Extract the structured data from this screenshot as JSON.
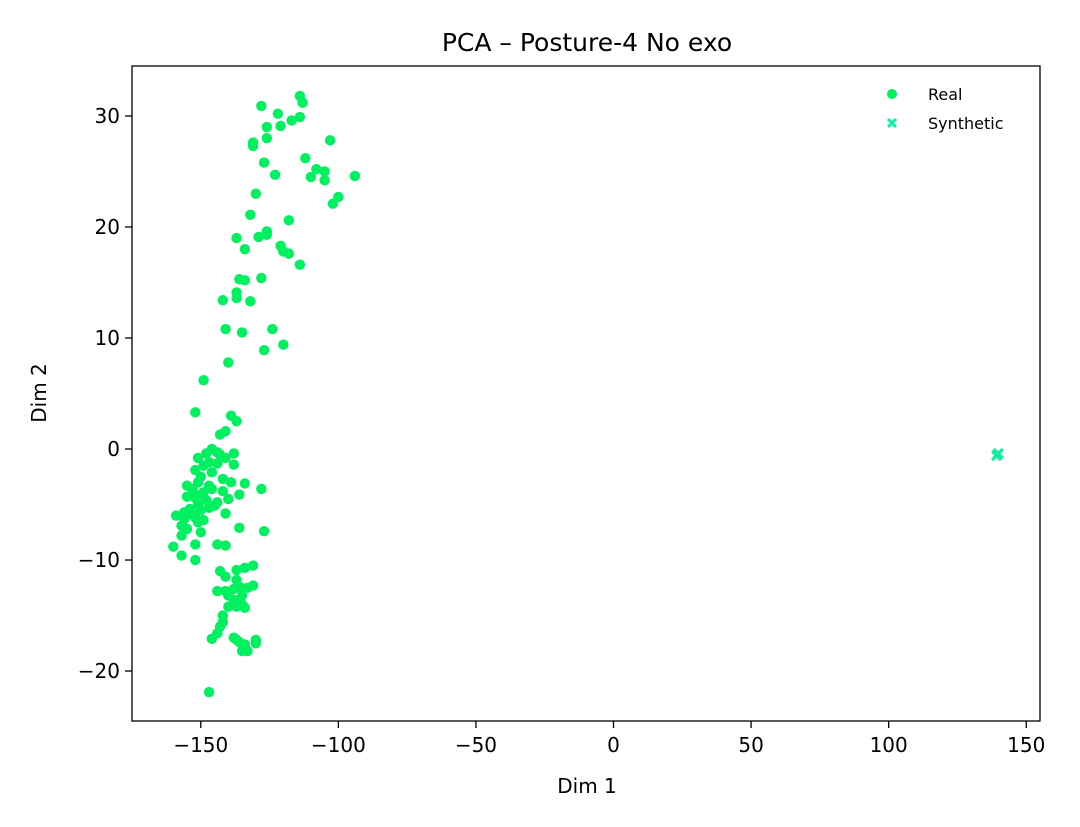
{
  "chart_data": {
    "type": "scatter",
    "title": "PCA – Posture-4 No exo",
    "xlabel": "Dim 1",
    "ylabel": "Dim 2",
    "xlim": [
      -175,
      155
    ],
    "ylim": [
      -24.5,
      34.5
    ],
    "xticks": [
      -150,
      -100,
      -50,
      0,
      50,
      100,
      150
    ],
    "xtick_labels": [
      "−150",
      "−100",
      "−50",
      "0",
      "50",
      "100",
      "150"
    ],
    "yticks": [
      -20,
      -10,
      0,
      10,
      20,
      30
    ],
    "ytick_labels": [
      "−20",
      "−10",
      "0",
      "10",
      "20",
      "30"
    ],
    "grid": false,
    "legend_position": "top-right",
    "series": [
      {
        "name": "Real",
        "marker": "circle",
        "color": "#00f060",
        "points": [
          [
            -114,
            31.8
          ],
          [
            -113,
            31.2
          ],
          [
            -128,
            30.9
          ],
          [
            -122,
            30.2
          ],
          [
            -126,
            29
          ],
          [
            -121,
            29.1
          ],
          [
            -114,
            29.9
          ],
          [
            -117,
            29.6
          ],
          [
            -126,
            28
          ],
          [
            -131,
            27.6
          ],
          [
            -131,
            27.3
          ],
          [
            -103,
            27.8
          ],
          [
            -112,
            26.2
          ],
          [
            -127,
            25.8
          ],
          [
            -108,
            25.2
          ],
          [
            -105,
            25
          ],
          [
            -123,
            24.7
          ],
          [
            -110,
            24.5
          ],
          [
            -105,
            24.2
          ],
          [
            -94,
            24.6
          ],
          [
            -130,
            23
          ],
          [
            -100,
            22.7
          ],
          [
            -102,
            22.1
          ],
          [
            -132,
            21.1
          ],
          [
            -118,
            20.6
          ],
          [
            -126,
            19.6
          ],
          [
            -137,
            19
          ],
          [
            -129,
            19.1
          ],
          [
            -126,
            19.3
          ],
          [
            -121,
            18.3
          ],
          [
            -120,
            17.8
          ],
          [
            -118,
            17.6
          ],
          [
            -134,
            18
          ],
          [
            -114,
            16.6
          ],
          [
            -136,
            15.3
          ],
          [
            -134,
            15.2
          ],
          [
            -128,
            15.4
          ],
          [
            -137,
            14.1
          ],
          [
            -137,
            13.6
          ],
          [
            -142,
            13.4
          ],
          [
            -132,
            13.3
          ],
          [
            -124,
            10.8
          ],
          [
            -141,
            10.8
          ],
          [
            -135,
            10.5
          ],
          [
            -120,
            9.4
          ],
          [
            -127,
            8.9
          ],
          [
            -140,
            7.8
          ],
          [
            -149,
            6.2
          ],
          [
            -139,
            3
          ],
          [
            -137,
            2.5
          ],
          [
            -152,
            3.3
          ],
          [
            -141,
            1.6
          ],
          [
            -143,
            1.3
          ],
          [
            -146,
            0
          ],
          [
            -148,
            -0.4
          ],
          [
            -151,
            -0.8
          ],
          [
            -143,
            -0.5
          ],
          [
            -138,
            -0.4
          ],
          [
            -144,
            -0.3
          ],
          [
            -141,
            -0.8
          ],
          [
            -147,
            -1.2
          ],
          [
            -149,
            -1.5
          ],
          [
            -152,
            -1.9
          ],
          [
            -146,
            -2.1
          ],
          [
            -150,
            -2.5
          ],
          [
            -144,
            -1.3
          ],
          [
            -138,
            -1.4
          ],
          [
            -142,
            -2.7
          ],
          [
            -147,
            -3.3
          ],
          [
            -151,
            -3
          ],
          [
            -155,
            -3.3
          ],
          [
            -153,
            -3.6
          ],
          [
            -149,
            -3.9
          ],
          [
            -146,
            -3.6
          ],
          [
            -142,
            -3.8
          ],
          [
            -139,
            -3
          ],
          [
            -134,
            -3.1
          ],
          [
            -150,
            -4.1
          ],
          [
            -155,
            -4.3
          ],
          [
            -152,
            -4.4
          ],
          [
            -148,
            -4.6
          ],
          [
            -144,
            -4.8
          ],
          [
            -140,
            -4.5
          ],
          [
            -136,
            -4.1
          ],
          [
            -128,
            -3.6
          ],
          [
            -151,
            -5
          ],
          [
            -154,
            -5.4
          ],
          [
            -156,
            -5.7
          ],
          [
            -153,
            -5.9
          ],
          [
            -150,
            -5.5
          ],
          [
            -147,
            -5.3
          ],
          [
            -145,
            -5.1
          ],
          [
            -159,
            -6
          ],
          [
            -156,
            -6.3
          ],
          [
            -152,
            -6.2
          ],
          [
            -149,
            -6.4
          ],
          [
            -151,
            -6.6
          ],
          [
            -157,
            -6.9
          ],
          [
            -155,
            -7.2
          ],
          [
            -150,
            -7.5
          ],
          [
            -157,
            -7.8
          ],
          [
            -141,
            -5.8
          ],
          [
            -136,
            -7.1
          ],
          [
            -127,
            -7.4
          ],
          [
            -160,
            -8.8
          ],
          [
            -152,
            -8.6
          ],
          [
            -144,
            -8.6
          ],
          [
            -141,
            -8.7
          ],
          [
            -157,
            -9.6
          ],
          [
            -152,
            -10
          ],
          [
            -131,
            -10.5
          ],
          [
            -134,
            -10.7
          ],
          [
            -137,
            -10.9
          ],
          [
            -143,
            -11
          ],
          [
            -141,
            -11.5
          ],
          [
            -137,
            -11.8
          ],
          [
            -131,
            -12.3
          ],
          [
            -133,
            -12.5
          ],
          [
            -136,
            -12.4
          ],
          [
            -138,
            -12.6
          ],
          [
            -141,
            -12.8
          ],
          [
            -144,
            -12.8
          ],
          [
            -140,
            -13.2
          ],
          [
            -138,
            -13.6
          ],
          [
            -135,
            -13.2
          ],
          [
            -135,
            -14
          ],
          [
            -134,
            -14.3
          ],
          [
            -137,
            -14.2
          ],
          [
            -140,
            -14.2
          ],
          [
            -142,
            -15
          ],
          [
            -142,
            -15.6
          ],
          [
            -143,
            -16
          ],
          [
            -144,
            -16.6
          ],
          [
            -146,
            -17.1
          ],
          [
            -138,
            -17
          ],
          [
            -137,
            -17.2
          ],
          [
            -136,
            -17.4
          ],
          [
            -134,
            -17.6
          ],
          [
            -130,
            -17.2
          ],
          [
            -130,
            -17.5
          ],
          [
            -135,
            -18.2
          ],
          [
            -133,
            -18.2
          ],
          [
            -147,
            -21.9
          ]
        ]
      },
      {
        "name": "Synthetic",
        "marker": "x",
        "color": "#10f0a0",
        "points": [
          [
            139.5,
            -0.5
          ],
          [
            139.8,
            -0.4
          ],
          [
            139.2,
            -0.6
          ]
        ]
      }
    ]
  }
}
